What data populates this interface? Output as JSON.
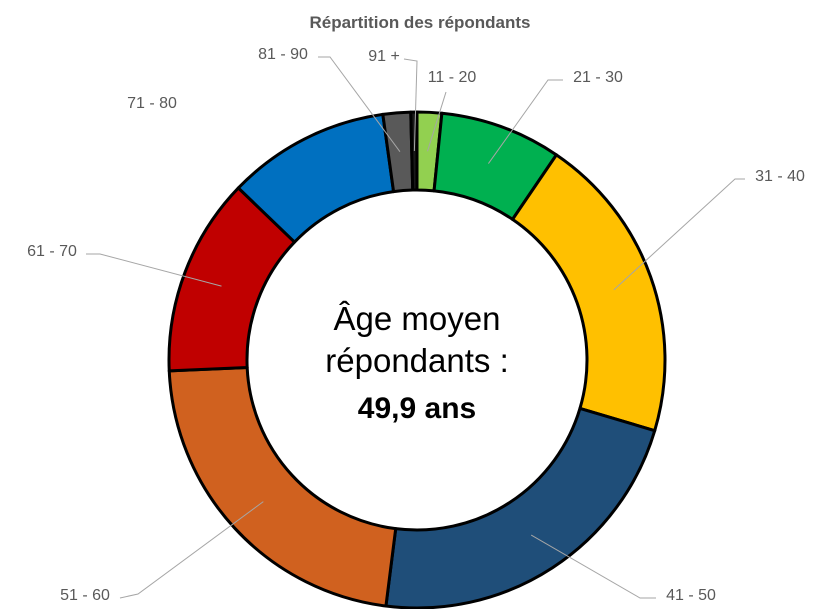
{
  "chart_data": {
    "type": "donut",
    "title": "Répartition des répondants",
    "categories": [
      "11 - 20",
      "21 - 30",
      "31 - 40",
      "41 - 50",
      "51 - 60",
      "61 - 70",
      "71 - 80",
      "81 - 90",
      "91 +"
    ],
    "values": [
      1.6,
      7.9,
      20.1,
      22.4,
      22.3,
      12.9,
      10.6,
      1.8,
      0.4
    ],
    "colors": [
      "#92d050",
      "#00b050",
      "#ffc000",
      "#1f4e79",
      "#d0611f",
      "#c00000",
      "#0070c0",
      "#595959",
      "#1a1a1a"
    ],
    "center_text": [
      "Âge moyen",
      "répondants :",
      "49,9 ans"
    ]
  }
}
